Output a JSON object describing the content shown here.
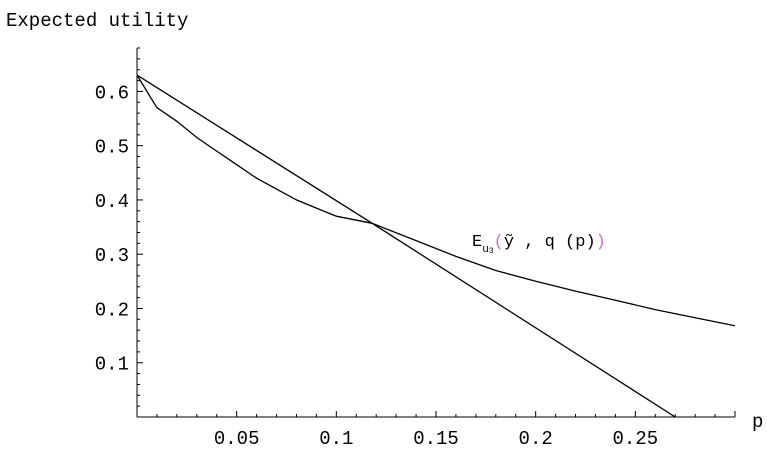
{
  "chart_data": {
    "type": "line",
    "ylabel": "Expected utility",
    "xlabel": "p",
    "xlim": [
      0,
      0.3
    ],
    "ylim": [
      0,
      0.68
    ],
    "x_ticks": [
      0.05,
      0.1,
      0.15,
      0.2,
      0.25
    ],
    "x_tick_labels": [
      "0.05",
      "0.1",
      "0.15",
      "0.2",
      "0.25"
    ],
    "y_ticks": [
      0.1,
      0.2,
      0.3,
      0.4,
      0.5,
      0.6
    ],
    "y_tick_labels": [
      "0.1",
      "0.2",
      "0.3",
      "0.4",
      "0.5",
      "0.6"
    ],
    "grid": false,
    "series": [
      {
        "x": [
          0,
          0.01,
          0.02,
          0.03,
          0.04,
          0.05,
          0.06,
          0.07,
          0.08,
          0.09,
          0.1,
          0.118,
          0.14,
          0.16,
          0.18,
          0.2,
          0.22,
          0.24,
          0.26,
          0.28,
          0.3
        ],
        "values": [
          0.63,
          0.57,
          0.545,
          0.515,
          0.49,
          0.465,
          0.44,
          0.42,
          0.4,
          0.385,
          0.37,
          0.357,
          0.325,
          0.296,
          0.27,
          0.25,
          0.232,
          0.215,
          0.198,
          0.183,
          0.168
        ]
      },
      {
        "x": [
          0,
          0.118,
          0.27
        ],
        "values": [
          0.63,
          0.357,
          0.0
        ]
      }
    ],
    "annotation": {
      "E": "E",
      "sub": "u",
      "subsub": "3",
      "open_paren": "(",
      "y": "ỹ",
      "middle": " , q (p)",
      "close_paren": ")"
    }
  }
}
